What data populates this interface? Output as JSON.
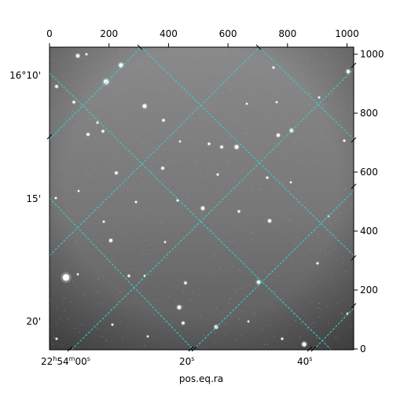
{
  "figure": {
    "xlabel": "pos.eq.ra",
    "top_axis": {
      "ticks": [
        "0",
        "200",
        "400",
        "600",
        "800",
        "1000"
      ]
    },
    "right_axis": {
      "ticks": [
        "0",
        "200",
        "400",
        "600",
        "800",
        "1000"
      ]
    },
    "ra_labels": {
      "first_main": "22",
      "first_h": "h",
      "first_mid": "54",
      "first_m": "m",
      "first_tail": "00",
      "first_s": "s",
      "second": "20",
      "second_s": "s",
      "third": "40",
      "third_s": "s"
    },
    "dec_labels": [
      "16°10'",
      "15'",
      "20'"
    ],
    "colors": {
      "grid": "#35d3d3",
      "background_sky": "#7b7b7b",
      "axes": "#000000"
    }
  }
}
